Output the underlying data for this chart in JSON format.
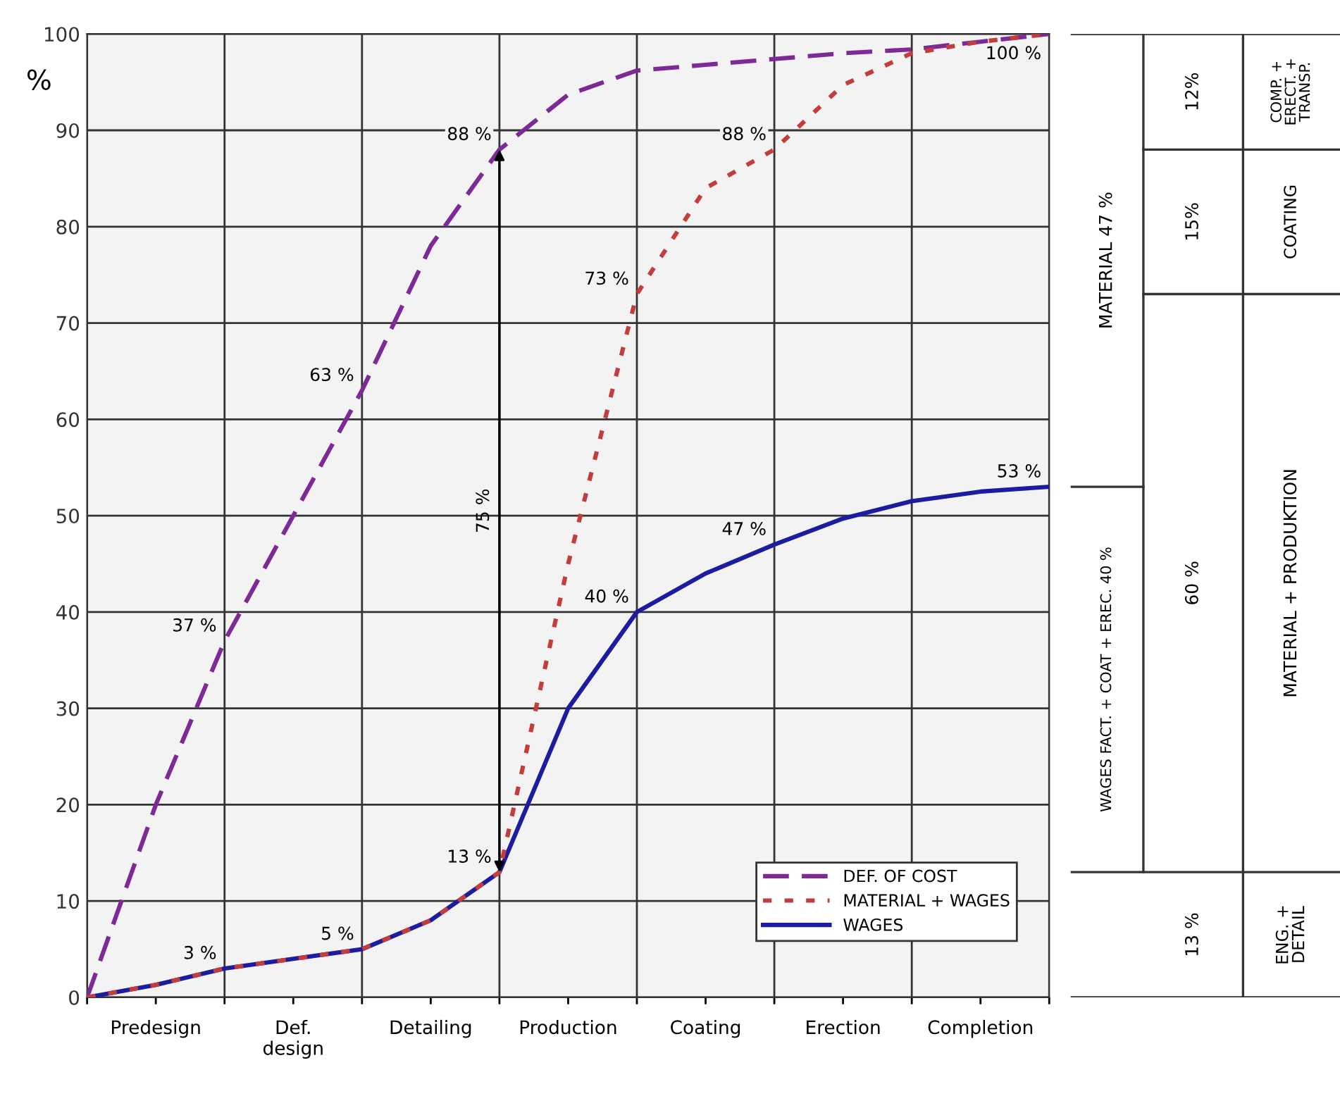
{
  "chart_data": {
    "type": "line",
    "ylabel": "%",
    "categories": [
      null,
      "Predesign",
      null,
      "Def.\ndesign",
      null,
      "Detailing",
      null,
      "Production",
      null,
      "Coating",
      null,
      "Erection",
      null,
      "Completion",
      null
    ],
    "ylim": [
      0,
      100
    ],
    "yticks": [
      0,
      10,
      20,
      30,
      40,
      50,
      60,
      70,
      80,
      90,
      100
    ],
    "grid": true,
    "legend": "bottom right",
    "marker": "none",
    "series": [
      {
        "name": "DEF. OF COST",
        "color": "#7e2a96",
        "line_style": "dashed",
        "values": [
          0,
          20,
          37,
          50,
          63,
          78,
          88,
          93.7,
          96.2,
          96.8,
          97.4,
          98,
          98.4,
          99.2,
          100
        ],
        "value_labels": [
          null,
          null,
          "37 %",
          null,
          "63 %",
          null,
          "88 %",
          null,
          null,
          null,
          null,
          null,
          null,
          null,
          "100 %"
        ]
      },
      {
        "name": "MATERIAL + WAGES",
        "color": "#c43c3c",
        "line_style": "dotted",
        "values": [
          0,
          1.3,
          3,
          4,
          5,
          8,
          13,
          45,
          73,
          84,
          88,
          94.7,
          98,
          99.2,
          100
        ],
        "value_labels": [
          null,
          null,
          null,
          null,
          null,
          null,
          null,
          null,
          "73 %",
          null,
          "88 %",
          null,
          null,
          null,
          null
        ]
      },
      {
        "name": "WAGES",
        "color": "#1c1ca0",
        "line_style": "solid",
        "values": [
          0,
          1.3,
          3,
          4,
          5,
          8,
          13,
          30,
          40,
          44,
          47,
          49.7,
          51.5,
          52.5,
          53
        ],
        "value_labels": [
          null,
          null,
          "3 %",
          null,
          "5 %",
          null,
          "13 %",
          null,
          "40 %",
          null,
          "47 %",
          null,
          null,
          null,
          "53 %"
        ]
      }
    ],
    "annotations": [
      "75 %",
      "MATERIAL 47 %",
      "WAGES FACT. + COAT + EREC. 40 %",
      "12%",
      "15%",
      "60 %",
      "13 %",
      "COMP. +\nERECT. +\nTRANSP.",
      "COATING",
      "MATERIAL + PRODUKTION",
      "ENG. +\nDETAIL"
    ]
  }
}
